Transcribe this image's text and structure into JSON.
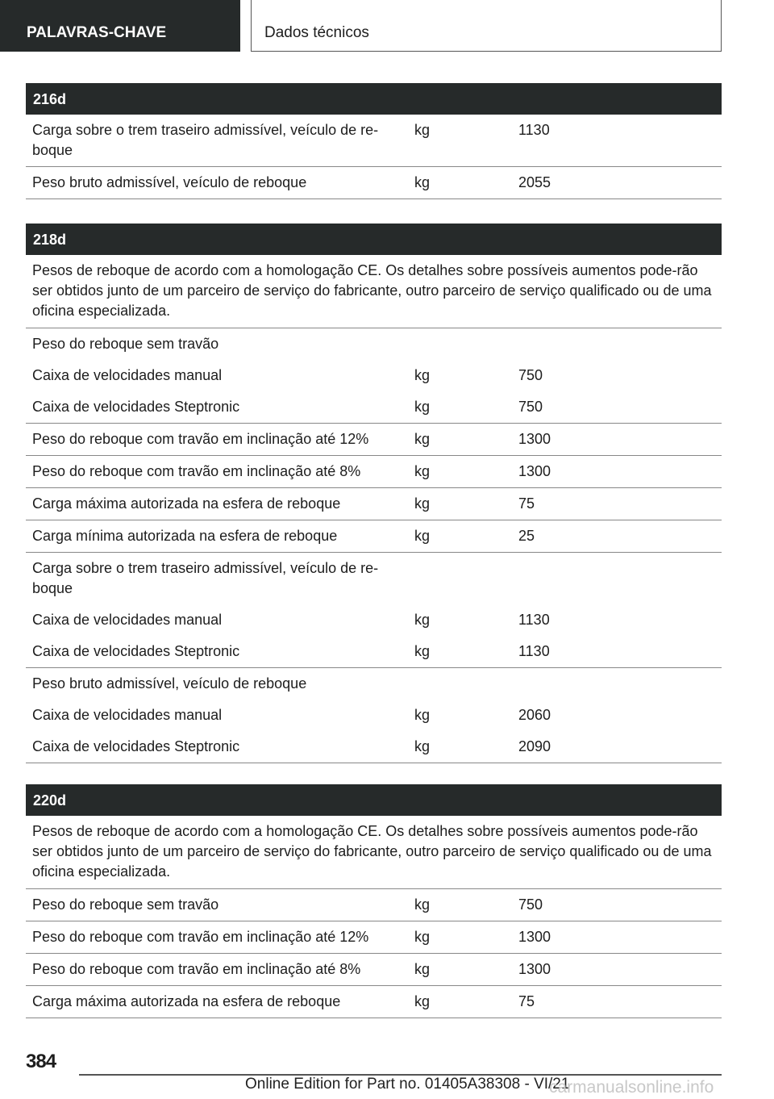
{
  "header": {
    "section_tab": "PALAVRAS-CHAVE",
    "chapter_tab": "Dados técnicos"
  },
  "sections": [
    {
      "title": "216d",
      "note": "",
      "groups": [
        [
          {
            "label": "Carga sobre o trem traseiro admissível, veículo de re-boque",
            "unit": "kg",
            "value": "1130"
          }
        ],
        [
          {
            "label": "Peso bruto admissível, veículo de reboque",
            "unit": "kg",
            "value": "2055"
          }
        ]
      ]
    },
    {
      "title": "218d",
      "note": "Pesos de reboque de acordo com a homologação CE. Os detalhes sobre possíveis aumentos pode-rão ser obtidos junto de um parceiro de serviço do fabricante, outro parceiro de serviço qualificado ou de uma oficina especializada.",
      "groups": [
        [
          {
            "label": "Peso do reboque sem travão",
            "unit": "",
            "value": ""
          },
          {
            "label": "Caixa de velocidades manual",
            "unit": "kg",
            "value": "750"
          },
          {
            "label": "Caixa de velocidades Steptronic",
            "unit": "kg",
            "value": "750"
          }
        ],
        [
          {
            "label": "Peso do reboque com travão em inclinação até 12%",
            "unit": "kg",
            "value": "1300"
          }
        ],
        [
          {
            "label": "Peso do reboque com travão em inclinação até 8%",
            "unit": "kg",
            "value": "1300"
          }
        ],
        [
          {
            "label": "Carga máxima autorizada na esfera de reboque",
            "unit": "kg",
            "value": "75"
          }
        ],
        [
          {
            "label": "Carga mínima autorizada na esfera de reboque",
            "unit": "kg",
            "value": "25"
          }
        ],
        [
          {
            "label": "Carga sobre o trem traseiro admissível, veículo de re-boque",
            "unit": "",
            "value": ""
          },
          {
            "label": "Caixa de velocidades manual",
            "unit": "kg",
            "value": "1130"
          },
          {
            "label": "Caixa de velocidades Steptronic",
            "unit": "kg",
            "value": "1130"
          }
        ],
        [
          {
            "label": "Peso bruto admissível, veículo de reboque",
            "unit": "",
            "value": ""
          },
          {
            "label": "Caixa de velocidades manual",
            "unit": "kg",
            "value": "2060"
          },
          {
            "label": "Caixa de velocidades Steptronic",
            "unit": "kg",
            "value": "2090"
          }
        ]
      ]
    },
    {
      "title": "220d",
      "note": "Pesos de reboque de acordo com a homologação CE. Os detalhes sobre possíveis aumentos pode-rão ser obtidos junto de um parceiro de serviço do fabricante, outro parceiro de serviço qualificado ou de uma oficina especializada.",
      "groups": [
        [
          {
            "label": "Peso do reboque sem travão",
            "unit": "kg",
            "value": "750"
          }
        ],
        [
          {
            "label": "Peso do reboque com travão em inclinação até 12%",
            "unit": "kg",
            "value": "1300"
          }
        ],
        [
          {
            "label": "Peso do reboque com travão em inclinação até 8%",
            "unit": "kg",
            "value": "1300"
          }
        ],
        [
          {
            "label": "Carga máxima autorizada na esfera de reboque",
            "unit": "kg",
            "value": "75"
          }
        ]
      ]
    }
  ],
  "footer": {
    "page_number": "384",
    "edition": "Online Edition for Part no. 01405A38308 - VI/21",
    "watermark": "carmanualsonline.info"
  }
}
